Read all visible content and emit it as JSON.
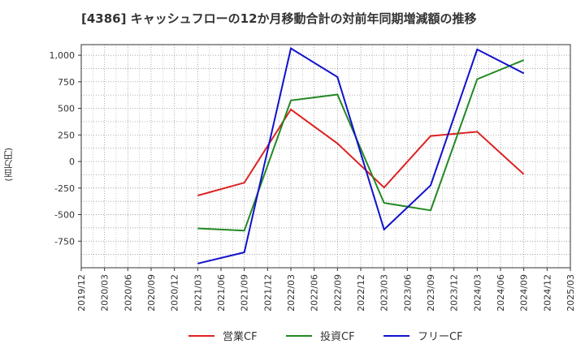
{
  "chart_data": {
    "type": "line",
    "title": "[4386]  キャッシュフローの12か月移動合計の対前年同期増減額の推移",
    "ylabel": "(百万円)",
    "xlabel": "",
    "ylim": [
      -1000,
      1100
    ],
    "yticks": [
      -750,
      -500,
      -250,
      0,
      250,
      500,
      750,
      1000
    ],
    "ytick_labels": [
      "-750",
      "-500",
      "-250",
      "0",
      "250",
      "500",
      "750",
      "1,000"
    ],
    "categories": [
      "2019/12",
      "2020/03",
      "2020/06",
      "2020/09",
      "2020/12",
      "2021/03",
      "2021/06",
      "2021/09",
      "2021/12",
      "2022/03",
      "2022/06",
      "2022/09",
      "2022/12",
      "2023/03",
      "2023/06",
      "2023/09",
      "2023/12",
      "2024/03",
      "2024/06",
      "2024/09",
      "2024/12",
      "2025/03"
    ],
    "grid": true,
    "legend_position": "bottom",
    "series": [
      {
        "name": "営業CF",
        "color": "#dd2222",
        "points": [
          [
            "2021/03",
            -320
          ],
          [
            "2021/09",
            -200
          ],
          [
            "2022/03",
            490
          ],
          [
            "2022/09",
            170
          ],
          [
            "2023/03",
            -245
          ],
          [
            "2023/09",
            240
          ],
          [
            "2024/03",
            280
          ],
          [
            "2024/09",
            -120
          ]
        ]
      },
      {
        "name": "投資CF",
        "color": "#228822",
        "points": [
          [
            "2021/03",
            -630
          ],
          [
            "2021/09",
            -650
          ],
          [
            "2022/03",
            575
          ],
          [
            "2022/09",
            630
          ],
          [
            "2023/03",
            -390
          ],
          [
            "2023/09",
            -460
          ],
          [
            "2024/03",
            775
          ],
          [
            "2024/09",
            955
          ]
        ]
      },
      {
        "name": "フリーCF",
        "color": "#1111cc",
        "points": [
          [
            "2021/03",
            -960
          ],
          [
            "2021/09",
            -855
          ],
          [
            "2022/03",
            1065
          ],
          [
            "2022/09",
            795
          ],
          [
            "2023/03",
            -640
          ],
          [
            "2023/09",
            -225
          ],
          [
            "2024/03",
            1055
          ],
          [
            "2024/09",
            830
          ]
        ]
      }
    ]
  }
}
